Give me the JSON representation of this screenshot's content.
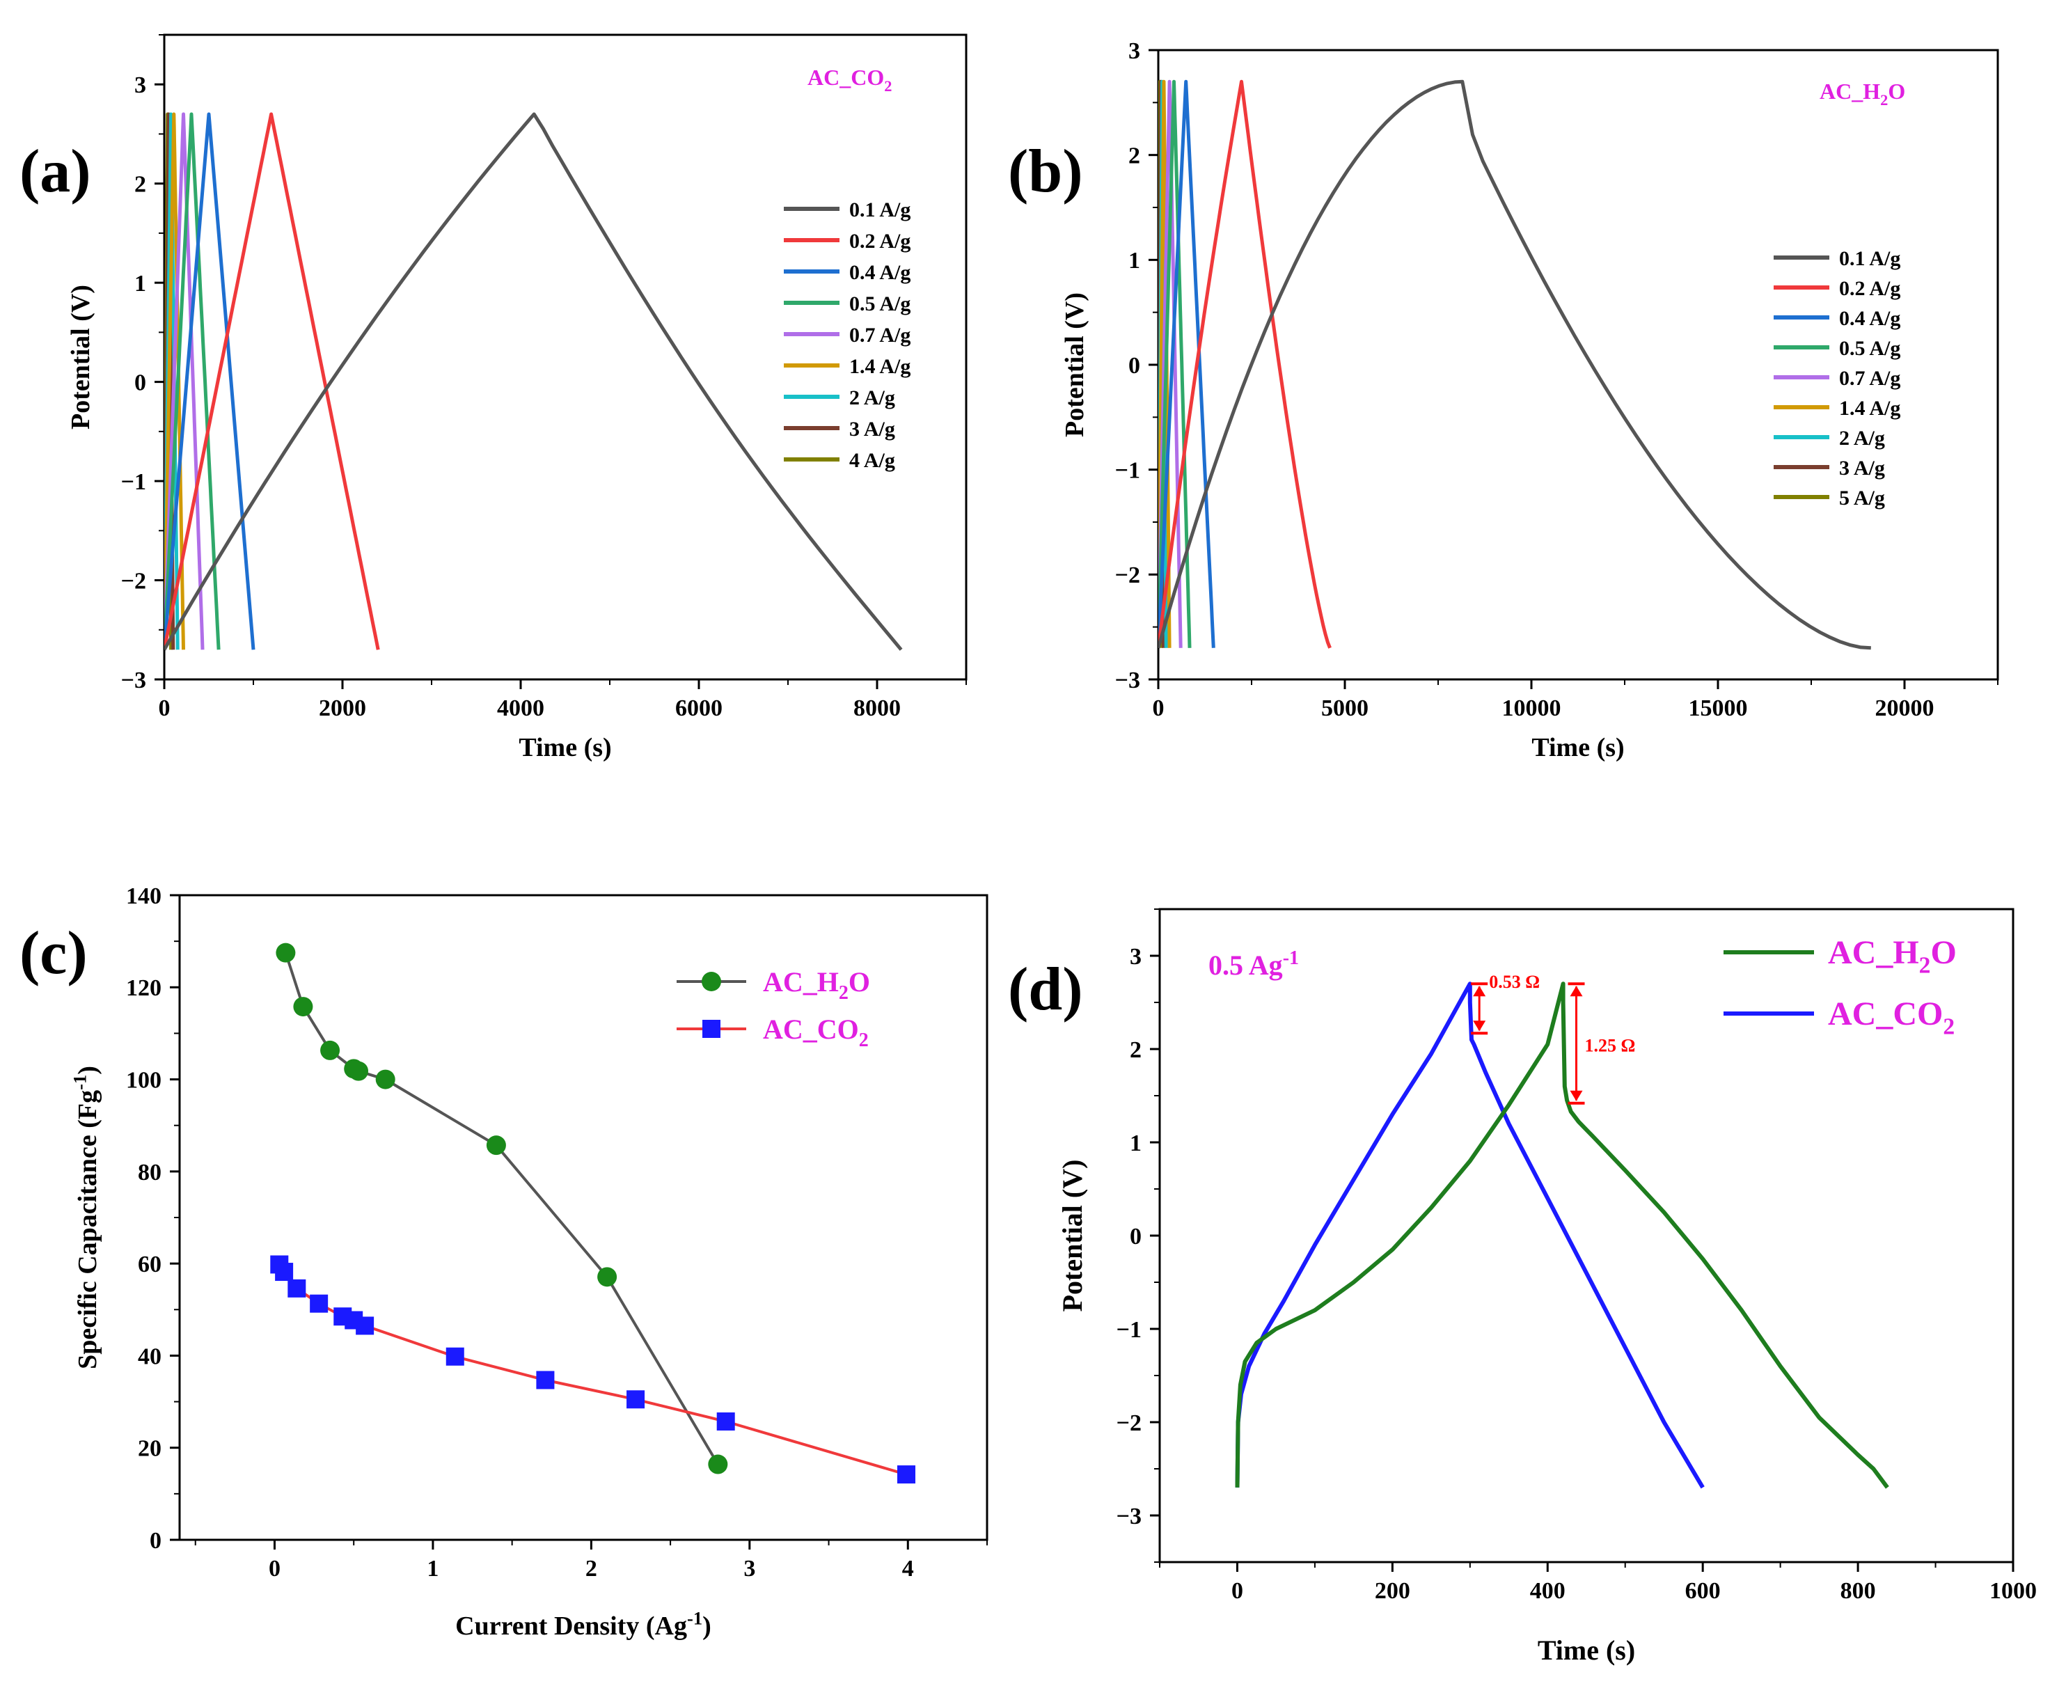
{
  "figure": {
    "panels": [
      {
        "id": "a",
        "label": "(a)"
      },
      {
        "id": "b",
        "label": "(b)"
      },
      {
        "id": "c",
        "label": "(c)"
      },
      {
        "id": "d",
        "label": "(d)"
      }
    ]
  },
  "chart_data": [
    {
      "panel": "(a)",
      "type": "line",
      "annotation": {
        "base": "AC_CO",
        "sub": "2"
      },
      "xlabel": "Time (s)",
      "ylabel": "Potential (V)",
      "xlim": [
        0,
        9000
      ],
      "ylim": [
        -3,
        3.5
      ],
      "xticks": [
        0,
        2000,
        4000,
        6000,
        8000
      ],
      "yticks": [
        -3,
        -2,
        -1,
        0,
        1,
        2,
        3
      ],
      "legend_position": "right",
      "series": [
        {
          "name": "0.1 A/g",
          "color": "#555555",
          "shape": "concave",
          "t_charge": 4150,
          "t_end": 8270
        },
        {
          "name": "0.2 A/g",
          "color": "#f0393b",
          "shape": "linear",
          "t_charge": 1200,
          "t_end": 2400
        },
        {
          "name": "0.4 A/g",
          "color": "#1e6fd0",
          "shape": "linear",
          "t_charge": 500,
          "t_end": 1000
        },
        {
          "name": "0.5 A/g",
          "color": "#2fa86a",
          "shape": "linear",
          "t_charge": 305,
          "t_end": 610
        },
        {
          "name": "0.7 A/g",
          "color": "#b06ee8",
          "shape": "linear",
          "t_charge": 215,
          "t_end": 430
        },
        {
          "name": "1.4  A/g",
          "color": "#d19a06",
          "shape": "linear",
          "t_charge": 108,
          "t_end": 215
        },
        {
          "name": "2 A/g",
          "color": "#18c0c8",
          "shape": "linear",
          "t_charge": 75,
          "t_end": 150
        },
        {
          "name": "3  A/g",
          "color": "#7a3e2e",
          "shape": "linear",
          "t_charge": 50,
          "t_end": 100
        },
        {
          "name": "4 A/g",
          "color": "#808000",
          "shape": "linear",
          "t_charge": 37,
          "t_end": 75
        }
      ]
    },
    {
      "panel": "(b)",
      "type": "line",
      "annotation": {
        "base": "AC_H",
        "sub": "2",
        "post": "O"
      },
      "xlabel": "Time (s)",
      "ylabel": "Potential (V)",
      "xlim": [
        0,
        22500
      ],
      "ylim": [
        -3,
        3
      ],
      "xticks": [
        0,
        5000,
        10000,
        15000,
        20000
      ],
      "yticks": [
        -3,
        -2,
        -1,
        0,
        1,
        2,
        3
      ],
      "legend_position": "right",
      "series": [
        {
          "name": "0.1 A/g",
          "color": "#555555",
          "shape": "h2o",
          "t_charge": 8150,
          "t_end": 19100
        },
        {
          "name": "0.2 A/g",
          "color": "#f0393b",
          "shape": "convex",
          "t_charge": 2230,
          "t_end": 4600
        },
        {
          "name": "0.4 A/g",
          "color": "#1e6fd0",
          "shape": "linear",
          "t_charge": 740,
          "t_end": 1480
        },
        {
          "name": "0.5 A/g",
          "color": "#2fa86a",
          "shape": "linear",
          "t_charge": 420,
          "t_end": 840
        },
        {
          "name": "0.7 A/g",
          "color": "#b06ee8",
          "shape": "linear",
          "t_charge": 300,
          "t_end": 600
        },
        {
          "name": "1.4  A/g",
          "color": "#d19a06",
          "shape": "linear",
          "t_charge": 150,
          "t_end": 300
        },
        {
          "name": "2 A/g",
          "color": "#18c0c8",
          "shape": "linear",
          "t_charge": 105,
          "t_end": 210
        },
        {
          "name": "3  A/g",
          "color": "#7a3e2e",
          "shape": "linear",
          "t_charge": 70,
          "t_end": 140
        },
        {
          "name": "5 A/g",
          "color": "#808000",
          "shape": "linear",
          "t_charge": 42,
          "t_end": 84
        }
      ]
    },
    {
      "panel": "(c)",
      "type": "scatter",
      "xlabel": "Current Density (Ag",
      "xlabel_sup": "-1",
      "xlabel_post": ")",
      "ylabel": "Specific Capacitance (Fg",
      "ylabel_sup": "-1",
      "ylabel_post": ")",
      "xlim": [
        -0.6,
        4.5
      ],
      "ylim": [
        0,
        140
      ],
      "xticks": [
        0,
        1,
        2,
        3,
        4
      ],
      "yticks": [
        0,
        20,
        40,
        60,
        80,
        100,
        120,
        140
      ],
      "legend_position": "top-right",
      "series": [
        {
          "name": "AC_H2O",
          "label": {
            "base": "AC_H",
            "sub": "2",
            "post": "O"
          },
          "line_color": "#555555",
          "marker_color": "#1a8a1a",
          "marker": "circle",
          "x": [
            0.07,
            0.18,
            0.35,
            0.5,
            0.53,
            0.7,
            1.4,
            2.1,
            2.8
          ],
          "y": [
            127.5,
            115.8,
            106.3,
            102.3,
            101.8,
            100.0,
            85.7,
            57.1,
            16.4
          ]
        },
        {
          "name": "AC_CO2",
          "label": {
            "base": "AC_CO",
            "sub": "2"
          },
          "line_color": "#f0393b",
          "marker_color": "#1a1aff",
          "marker": "square",
          "x": [
            0.03,
            0.06,
            0.14,
            0.28,
            0.43,
            0.5,
            0.57,
            1.14,
            1.71,
            2.28,
            2.85,
            3.99
          ],
          "y": [
            59.8,
            58.2,
            54.6,
            51.3,
            48.5,
            47.7,
            46.5,
            39.8,
            34.7,
            30.5,
            25.7,
            14.2
          ]
        }
      ]
    },
    {
      "panel": "(d)",
      "type": "line",
      "annotation": {
        "base": "0.5 Ag",
        "sup": "-1"
      },
      "xlabel": "Time (s)",
      "ylabel": "Potential (V)",
      "xlim": [
        -100,
        1000
      ],
      "ylim": [
        -3.5,
        3.5
      ],
      "xticks": [
        0,
        200,
        400,
        600,
        800,
        1000
      ],
      "yticks": [
        -3,
        -2,
        -1,
        0,
        1,
        2,
        3
      ],
      "legend_position": "top-right",
      "series": [
        {
          "name": "AC_H2O",
          "label": {
            "base": "AC_H",
            "sub": "2",
            "post": "O"
          },
          "color": "#1e7d1e",
          "x": [
            0,
            1,
            4,
            10,
            25,
            50,
            100,
            150,
            200,
            250,
            300,
            350,
            400,
            420,
            420,
            422,
            425,
            430,
            440,
            460,
            500,
            550,
            600,
            650,
            700,
            750,
            800,
            820,
            838
          ],
          "y": [
            -2.7,
            -2.0,
            -1.6,
            -1.35,
            -1.15,
            -1.0,
            -0.8,
            -0.5,
            -0.15,
            0.3,
            0.8,
            1.4,
            2.05,
            2.7,
            2.5,
            1.6,
            1.45,
            1.33,
            1.22,
            1.05,
            0.7,
            0.25,
            -0.25,
            -0.8,
            -1.4,
            -1.95,
            -2.35,
            -2.5,
            -2.7
          ]
        },
        {
          "name": "AC_CO2",
          "label": {
            "base": "AC_CO",
            "sub": "2"
          },
          "color": "#1a1aff",
          "x": [
            0,
            1,
            5,
            15,
            35,
            60,
            100,
            150,
            200,
            250,
            300,
            300,
            302,
            305,
            310,
            320,
            350,
            400,
            450,
            500,
            550,
            600
          ],
          "y": [
            -2.7,
            -2.0,
            -1.7,
            -1.4,
            -1.05,
            -0.7,
            -0.1,
            0.6,
            1.3,
            1.95,
            2.7,
            2.5,
            2.1,
            2.05,
            1.95,
            1.75,
            1.2,
            0.4,
            -0.4,
            -1.2,
            -2.0,
            -2.7
          ]
        }
      ],
      "ir_drops": [
        {
          "label": "0.53 Ω",
          "x": 312,
          "y_top": 2.7,
          "y_bottom": 2.17,
          "color": "#ff0000"
        },
        {
          "label": "1.25 Ω",
          "x": 437,
          "y_top": 2.7,
          "y_bottom": 1.42,
          "color": "#ff0000"
        }
      ]
    }
  ]
}
